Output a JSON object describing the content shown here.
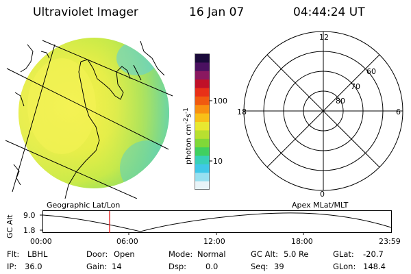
{
  "header": {
    "instrument": "Ultraviolet Imager",
    "date": "16 Jan 07",
    "time": "04:44:24 UT"
  },
  "colorbar": {
    "label": "photon cm",
    "label_sup1": "-2",
    "label_mid": "s",
    "label_sup2": "-1",
    "tick_high": "100",
    "tick_low": "10",
    "colors": [
      "#1a0a3a",
      "#4a1060",
      "#8a1860",
      "#c01028",
      "#e83018",
      "#f05a10",
      "#f89010",
      "#f8c018",
      "#e8e830",
      "#b8e030",
      "#80d838",
      "#40d060",
      "#38d0b8",
      "#40c8e8",
      "#98e0f0",
      "#e8f4f8"
    ]
  },
  "polar_plot": {
    "label_top": "12",
    "label_left": "18",
    "label_right": "6",
    "label_bottom": "0",
    "ring_60": "60",
    "ring_70": "70",
    "ring_80": "80"
  },
  "projection": {
    "left": "Geographic Lat/Lon",
    "right": "Apex  MLat/MLT"
  },
  "altitude_plot": {
    "ylabel": "GC Alt",
    "ymax": "9.0",
    "ymin": "1.8",
    "xticks": [
      "00:00",
      "06:00",
      "12:00",
      "18:00",
      "23:59"
    ]
  },
  "status": {
    "flt_label": "Flt:",
    "flt_value": "LBHL",
    "ip_label": "IP:",
    "ip_value": "36.0",
    "door_label": "Door:",
    "door_value": "Open",
    "gain_label": "Gain:",
    "gain_value": "14",
    "mode_label": "Mode:",
    "mode_value": "Normal",
    "dsp_label": "Dsp:",
    "dsp_value": "0.0",
    "gcalt_label": "GC Alt:",
    "gcalt_value": "5.0 Re",
    "seq_label": "Seq:",
    "seq_value": "39",
    "glat_label": "GLat:",
    "glat_value": "-20.7",
    "glon_label": "GLon:",
    "glon_value": "148.4"
  }
}
